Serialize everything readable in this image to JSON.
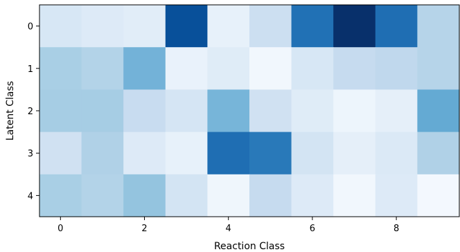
{
  "chart_data": {
    "type": "heatmap",
    "title": "",
    "xlabel": "Reaction Class",
    "ylabel": "Latent Class",
    "colormap": "Blues",
    "vmin": 0,
    "vmax": 1,
    "x_ticks": [
      0,
      2,
      4,
      6,
      8
    ],
    "x_tick_labels": [
      "0",
      "2",
      "4",
      "6",
      "8"
    ],
    "y_ticks": [
      0,
      1,
      2,
      3,
      4
    ],
    "y_tick_labels": [
      "0",
      "1",
      "2",
      "3",
      "4"
    ],
    "rows": 5,
    "cols": 10,
    "values": [
      [
        0.16,
        0.13,
        0.11,
        0.88,
        0.08,
        0.22,
        0.75,
        1.0,
        0.76,
        0.3
      ],
      [
        0.34,
        0.31,
        0.48,
        0.07,
        0.12,
        0.03,
        0.16,
        0.25,
        0.27,
        0.3
      ],
      [
        0.35,
        0.35,
        0.24,
        0.17,
        0.47,
        0.2,
        0.12,
        0.05,
        0.09,
        0.52
      ],
      [
        0.2,
        0.32,
        0.13,
        0.08,
        0.76,
        0.72,
        0.18,
        0.09,
        0.14,
        0.32
      ],
      [
        0.34,
        0.31,
        0.4,
        0.18,
        0.04,
        0.25,
        0.13,
        0.03,
        0.13,
        0.02
      ]
    ]
  }
}
